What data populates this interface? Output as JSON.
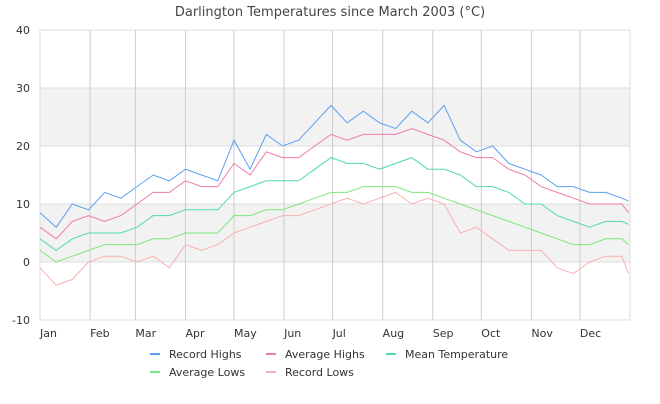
{
  "chart_data": {
    "type": "line",
    "title": "Darlington Temperatures since March 2003 (°C)",
    "xlabel": "",
    "ylabel": "",
    "ylim": [
      -10,
      40
    ],
    "yticks": [
      "-10",
      "0",
      "10",
      "20",
      "30",
      "40"
    ],
    "xlim_days": [
      0,
      365
    ],
    "months": [
      {
        "label": "Jan",
        "day": 0
      },
      {
        "label": "Feb",
        "day": 31
      },
      {
        "label": "Mar",
        "day": 59
      },
      {
        "label": "Apr",
        "day": 90
      },
      {
        "label": "May",
        "day": 120
      },
      {
        "label": "Jun",
        "day": 151
      },
      {
        "label": "Jul",
        "day": 181
      },
      {
        "label": "Aug",
        "day": 212
      },
      {
        "label": "Sep",
        "day": 243
      },
      {
        "label": "Oct",
        "day": 273
      },
      {
        "label": "Nov",
        "day": 304
      },
      {
        "label": "Dec",
        "day": 334
      }
    ],
    "grid": true,
    "shaded_bands": [
      [
        0,
        10
      ],
      [
        20,
        30
      ]
    ],
    "legend_position": "bottom",
    "x": [
      0,
      10,
      20,
      30,
      40,
      50,
      60,
      70,
      80,
      90,
      100,
      110,
      120,
      130,
      140,
      150,
      160,
      170,
      180,
      190,
      200,
      210,
      220,
      230,
      240,
      250,
      260,
      270,
      280,
      290,
      300,
      310,
      320,
      330,
      340,
      350,
      360,
      364
    ],
    "series": [
      {
        "name": "Record Highs",
        "color": "#5aa0f0",
        "values": [
          8.5,
          6,
          10,
          9,
          12,
          11,
          13,
          15,
          14,
          16,
          15,
          14,
          21,
          16,
          22,
          20,
          21,
          24,
          27,
          24,
          26,
          24,
          23,
          26,
          24,
          27,
          21,
          19,
          20,
          17,
          16,
          15,
          13,
          13,
          12,
          12,
          11,
          10.5
        ]
      },
      {
        "name": "Average Highs",
        "color": "#f07aaa",
        "values": [
          6,
          4,
          7,
          8,
          7,
          8,
          10,
          12,
          12,
          14,
          13,
          13,
          17,
          15,
          19,
          18,
          18,
          20,
          22,
          21,
          22,
          22,
          22,
          23,
          22,
          21,
          19,
          18,
          18,
          16,
          15,
          13,
          12,
          11,
          10,
          10,
          10,
          8.5
        ]
      },
      {
        "name": "Mean Temperature",
        "color": "#50dca0",
        "values": [
          4,
          2,
          4,
          5,
          5,
          5,
          6,
          8,
          8,
          9,
          9,
          9,
          12,
          13,
          14,
          14,
          14,
          16,
          18,
          17,
          17,
          16,
          17,
          18,
          16,
          16,
          15,
          13,
          13,
          12,
          10,
          10,
          8,
          7,
          6,
          7,
          7,
          6.5
        ]
      },
      {
        "name": "Average Lows",
        "color": "#7ce87c",
        "values": [
          2,
          0,
          1,
          2,
          3,
          3,
          3,
          4,
          4,
          5,
          5,
          5,
          8,
          8,
          9,
          9,
          10,
          11,
          12,
          12,
          13,
          13,
          13,
          12,
          12,
          11,
          10,
          9,
          8,
          7,
          6,
          5,
          4,
          3,
          3,
          4,
          4,
          3
        ]
      },
      {
        "name": "Record Lows",
        "color": "#f8b0b0",
        "values": [
          -1,
          -4,
          -3,
          0,
          1,
          1,
          0,
          1,
          -1,
          3,
          2,
          3,
          5,
          6,
          7,
          8,
          8,
          9,
          10,
          11,
          10,
          11,
          12,
          10,
          11,
          10,
          5,
          6,
          4,
          2,
          2,
          2,
          -1,
          -2,
          0,
          1,
          1,
          -2
        ]
      }
    ]
  }
}
